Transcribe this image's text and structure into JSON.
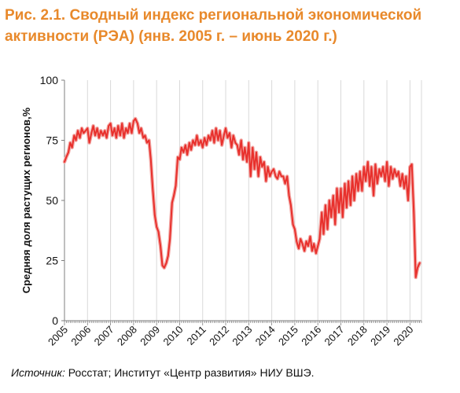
{
  "figure": {
    "title_line1": "Рис. 2.1. Сводный индекс региональной экономической",
    "title_line2": "активности (РЭА) (янв.  2005 г. – июнь 2020 г.)",
    "source_label": "Источник:",
    "source_text": " Росстат; Институт «Центр развития» НИУ ВШЭ.",
    "title_color": "#E8892B"
  },
  "chart_data": {
    "type": "line",
    "title": "",
    "xlabel": "",
    "ylabel": "Средняя доля растущих регионов,%",
    "ylim": [
      0,
      100
    ],
    "xlim": [
      2005,
      2020.5
    ],
    "yticks": [
      0,
      25,
      50,
      75,
      100
    ],
    "xticks": [
      "2005",
      "2006",
      "2007",
      "2008",
      "2009",
      "2010",
      "2011",
      "2012",
      "2013",
      "2014",
      "2015",
      "2016",
      "2017",
      "2018",
      "2019",
      "2020"
    ],
    "grid": "vertical",
    "legend": "none",
    "line_color": "#E8302C",
    "series": [
      {
        "x": [
          2005.0,
          2005.08,
          2005.17,
          2005.25,
          2005.33,
          2005.42,
          2005.5,
          2005.58,
          2005.67,
          2005.75,
          2005.83,
          2005.92,
          2006.0,
          2006.08,
          2006.17,
          2006.25,
          2006.33,
          2006.42,
          2006.5,
          2006.58,
          2006.67,
          2006.75,
          2006.83,
          2006.92,
          2007.0,
          2007.08,
          2007.17,
          2007.25,
          2007.33,
          2007.42,
          2007.5,
          2007.58,
          2007.67,
          2007.75,
          2007.83,
          2007.92,
          2008.0,
          2008.08,
          2008.17,
          2008.25,
          2008.33,
          2008.42,
          2008.5,
          2008.58,
          2008.67,
          2008.75,
          2008.83,
          2008.92,
          2009.0,
          2009.08,
          2009.17,
          2009.25,
          2009.33,
          2009.42,
          2009.5,
          2009.58,
          2009.67,
          2009.75,
          2009.83,
          2009.92,
          2010.0,
          2010.08,
          2010.17,
          2010.25,
          2010.33,
          2010.42,
          2010.5,
          2010.58,
          2010.67,
          2010.75,
          2010.83,
          2010.92,
          2011.0,
          2011.08,
          2011.17,
          2011.25,
          2011.33,
          2011.42,
          2011.5,
          2011.58,
          2011.67,
          2011.75,
          2011.83,
          2011.92,
          2012.0,
          2012.08,
          2012.17,
          2012.25,
          2012.33,
          2012.42,
          2012.5,
          2012.58,
          2012.67,
          2012.75,
          2012.83,
          2012.92,
          2013.0,
          2013.08,
          2013.17,
          2013.25,
          2013.33,
          2013.42,
          2013.5,
          2013.58,
          2013.67,
          2013.75,
          2013.83,
          2013.92,
          2014.0,
          2014.08,
          2014.17,
          2014.25,
          2014.33,
          2014.42,
          2014.5,
          2014.58,
          2014.67,
          2014.75,
          2014.83,
          2014.92,
          2015.0,
          2015.08,
          2015.17,
          2015.25,
          2015.33,
          2015.42,
          2015.5,
          2015.58,
          2015.67,
          2015.75,
          2015.83,
          2015.92,
          2016.0,
          2016.08,
          2016.17,
          2016.25,
          2016.33,
          2016.42,
          2016.5,
          2016.58,
          2016.67,
          2016.75,
          2016.83,
          2016.92,
          2017.0,
          2017.08,
          2017.17,
          2017.25,
          2017.33,
          2017.42,
          2017.5,
          2017.58,
          2017.67,
          2017.75,
          2017.83,
          2017.92,
          2018.0,
          2018.08,
          2018.17,
          2018.25,
          2018.33,
          2018.42,
          2018.5,
          2018.58,
          2018.67,
          2018.75,
          2018.83,
          2018.92,
          2019.0,
          2019.08,
          2019.17,
          2019.25,
          2019.33,
          2019.42,
          2019.5,
          2019.58,
          2019.67,
          2019.75,
          2019.83,
          2019.92,
          2020.0,
          2020.08,
          2020.17,
          2020.25,
          2020.33,
          2020.42
        ],
        "y": [
          66,
          68,
          70,
          74,
          72,
          77,
          75,
          79,
          76,
          80,
          78,
          79,
          80,
          74,
          78,
          81,
          77,
          80,
          76,
          79,
          77,
          79,
          76,
          81,
          82,
          77,
          80,
          76,
          81,
          77,
          82,
          76,
          80,
          78,
          82,
          78,
          83,
          84,
          82,
          78,
          80,
          76,
          77,
          74,
          75,
          67,
          55,
          44,
          39,
          37,
          31,
          23,
          22,
          24,
          27,
          34,
          49,
          52,
          56,
          68,
          67,
          72,
          70,
          73,
          69,
          74,
          71,
          75,
          73,
          77,
          73,
          75,
          72,
          76,
          73,
          77,
          75,
          79,
          74,
          80,
          75,
          79,
          73,
          77,
          80,
          76,
          78,
          72,
          77,
          74,
          73,
          69,
          75,
          67,
          72,
          66,
          74,
          60,
          72,
          63,
          70,
          60,
          68,
          64,
          66,
          58,
          64,
          60,
          62,
          63,
          60,
          59,
          62,
          60,
          60,
          57,
          60,
          52,
          48,
          40,
          38,
          33,
          30,
          34,
          32,
          29,
          33,
          31,
          35,
          29,
          32,
          28,
          31,
          34,
          45,
          36,
          48,
          38,
          50,
          43,
          52,
          40,
          55,
          45,
          55,
          43,
          57,
          47,
          58,
          48,
          60,
          50,
          61,
          54,
          62,
          54,
          64,
          58,
          66,
          56,
          64,
          52,
          65,
          57,
          63,
          60,
          64,
          58,
          66,
          56,
          64,
          59,
          63,
          60,
          62,
          56,
          61,
          55,
          60,
          50,
          64,
          65,
          45,
          18,
          22,
          24
        ]
      }
    ]
  }
}
